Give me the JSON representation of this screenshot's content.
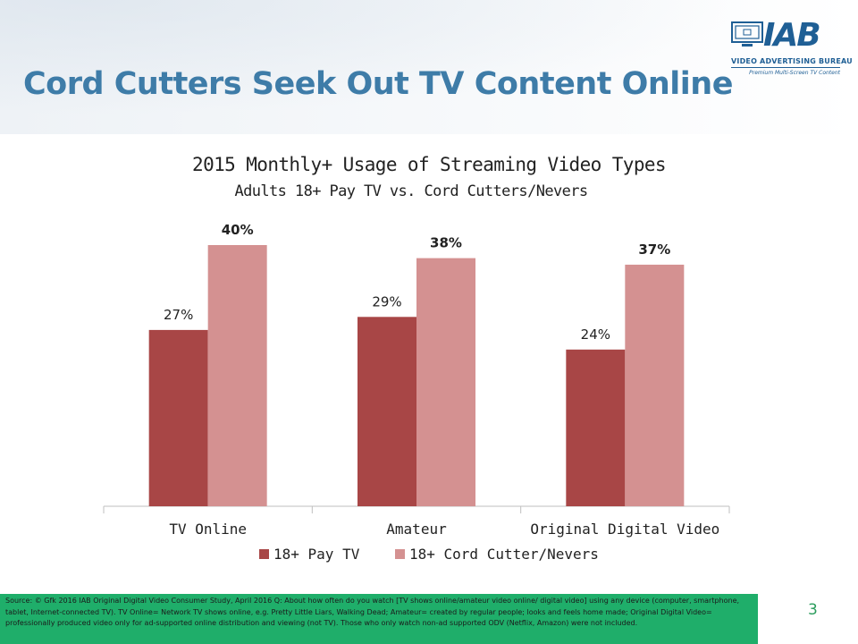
{
  "slide": {
    "title": "Cord Cutters Seek Out TV Content Online",
    "page_number": "3"
  },
  "logo": {
    "word": "IAB",
    "subtitle": "VIDEO ADVERTISING BUREAU",
    "tagline": "Premium Multi-Screen TV Content"
  },
  "chart_data": {
    "type": "bar",
    "title": "2015 Monthly+ Usage of Streaming Video Types",
    "subtitle": "Adults 18+ Pay TV vs. Cord Cutters/Nevers",
    "categories": [
      "TV Online",
      "Amateur",
      "Original Digital Video"
    ],
    "series": [
      {
        "name": "18+ Pay TV",
        "values": [
          27,
          29,
          24
        ],
        "labels": [
          "27%",
          "29%",
          "24%"
        ],
        "color": "#a84646"
      },
      {
        "name": "18+ Cord Cutter/Nevers",
        "values": [
          40,
          38,
          37
        ],
        "labels": [
          "40%",
          "38%",
          "37%"
        ],
        "color": "#d49191"
      }
    ],
    "ylim": [
      0,
      45
    ],
    "grid": false,
    "legend": "bottom",
    "xlabel": "",
    "ylabel": ""
  },
  "source": {
    "text": "Source: © Gfk 2016 IAB Original Digital Video Consumer Study, April 2016 Q: About how often do you watch [TV shows online/amateur video online/ digital video] using any device (computer, smartphone, tablet, Internet-connected TV). TV Online= Network TV shows online, e.g. Pretty Little Liars, Walking Dead; Amateur= created by regular people; looks and feels home made; Original Digital Video= professionally produced video only for ad-supported online distribution and viewing (not TV). Those who only watch non-ad supported ODV (Netflix, Amazon) were not included."
  }
}
